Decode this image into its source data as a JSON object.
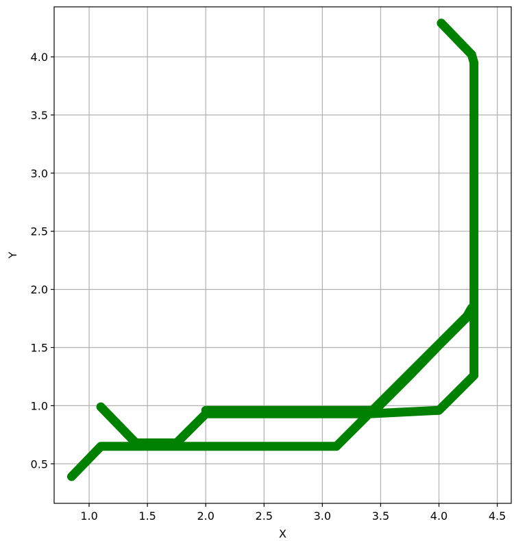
{
  "chart_data": {
    "type": "line",
    "title": "",
    "xlabel": "X",
    "ylabel": "Y",
    "xlim": [
      0.7,
      4.62
    ],
    "ylim": [
      0.16,
      4.43
    ],
    "xticks": [
      1.0,
      1.5,
      2.0,
      2.5,
      3.0,
      3.5,
      4.0,
      4.5
    ],
    "xtick_labels": [
      "1.0",
      "1.5",
      "2.0",
      "2.5",
      "3.0",
      "3.5",
      "4.0",
      "4.5"
    ],
    "yticks": [
      0.5,
      1.0,
      1.5,
      2.0,
      2.5,
      3.0,
      3.5,
      4.0
    ],
    "ytick_labels": [
      "0.5",
      "1.0",
      "1.5",
      "2.0",
      "2.5",
      "3.0",
      "3.5",
      "4.0"
    ],
    "grid": true,
    "legend": "none",
    "series_color": "#008000",
    "series": [
      {
        "x": [
          0.85,
          1.1,
          3.12,
          3.28,
          3.44,
          3.6,
          3.76,
          3.92,
          4.08,
          4.24,
          4.28
        ],
        "y": [
          0.39,
          0.65,
          0.65,
          0.81,
          0.97,
          1.13,
          1.29,
          1.45,
          1.61,
          1.77,
          1.84
        ]
      },
      {
        "x": [
          1.1,
          1.4,
          1.75,
          2.0,
          3.4,
          4.0,
          4.3,
          4.3,
          4.28
        ],
        "y": [
          0.99,
          0.68,
          0.68,
          0.93,
          0.93,
          0.96,
          1.26,
          3.95,
          4.02
        ]
      },
      {
        "x": [
          2.0,
          3.45,
          3.75,
          4.0,
          4.28
        ],
        "y": [
          0.96,
          0.96,
          1.26,
          1.52,
          1.8
        ]
      },
      {
        "x": [
          4.28,
          4.02
        ],
        "y": [
          4.02,
          4.29
        ]
      }
    ]
  }
}
